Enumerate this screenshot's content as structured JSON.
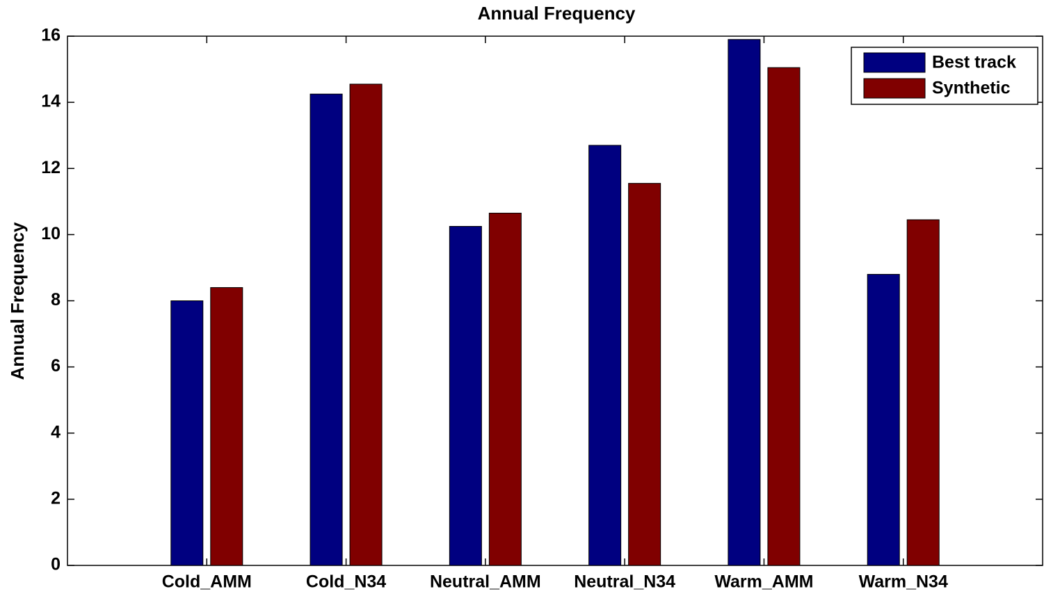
{
  "chart_data": {
    "type": "bar",
    "title": "Annual Frequency",
    "y_label": "Annual Frequency",
    "categories": [
      "Cold_AMM",
      "Cold_N34",
      "Neutral_AMM",
      "Neutral_N34",
      "Warm_AMM",
      "Warm_N34"
    ],
    "series": [
      {
        "name": "Best track",
        "color": "#000080",
        "values": [
          8.0,
          14.25,
          10.25,
          12.7,
          15.9,
          8.8
        ]
      },
      {
        "name": "Synthetic",
        "color": "#800000",
        "values": [
          8.4,
          14.55,
          10.65,
          11.55,
          15.05,
          10.45
        ]
      }
    ],
    "ylim": [
      0,
      16
    ],
    "yticks": [
      0,
      2,
      4,
      6,
      8,
      10,
      12,
      14,
      16
    ],
    "legend": "upper right"
  }
}
